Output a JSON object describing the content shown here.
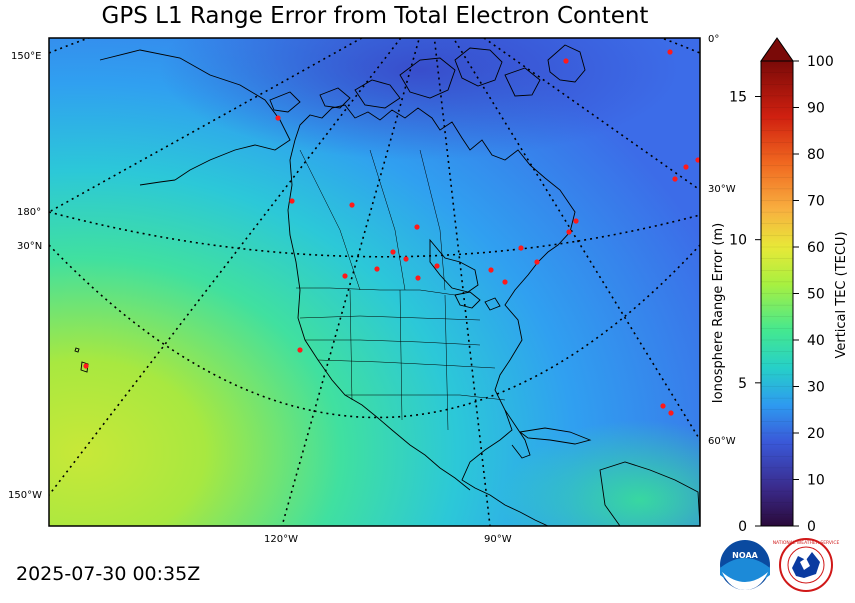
{
  "title": "GPS L1 Range Error from Total Electron Content",
  "timestamp": "2025-07-30 00:35Z",
  "map": {
    "graticule_labels": {
      "left": [
        "150°E",
        "180°",
        "30°N",
        "150°W"
      ],
      "right": [
        "0°",
        "30°W",
        "60°W"
      ],
      "bottom": [
        "120°W",
        "90°W"
      ]
    },
    "colors": {
      "field_low": "#3a60e0",
      "field_mid": "#2fa8f0",
      "field_high": "#30e0a0",
      "field_peak": "#a8e840",
      "coast": "#000000",
      "stations": "#ff1a1a"
    }
  },
  "colorbar": {
    "range_axis": {
      "label": "Ionosphere Range Error (m)",
      "ticks": [
        "0",
        "5",
        "10",
        "15"
      ]
    },
    "tec_axis": {
      "label": "Vertical TEC (TECU)",
      "ticks": [
        "0",
        "10",
        "20",
        "30",
        "40",
        "50",
        "60",
        "70",
        "80",
        "90",
        "100"
      ],
      "min": 0,
      "max": 100,
      "extend": "max"
    }
  },
  "logos": {
    "noaa": "NOAA",
    "nws": "NATIONAL WEATHER SERVICE"
  }
}
